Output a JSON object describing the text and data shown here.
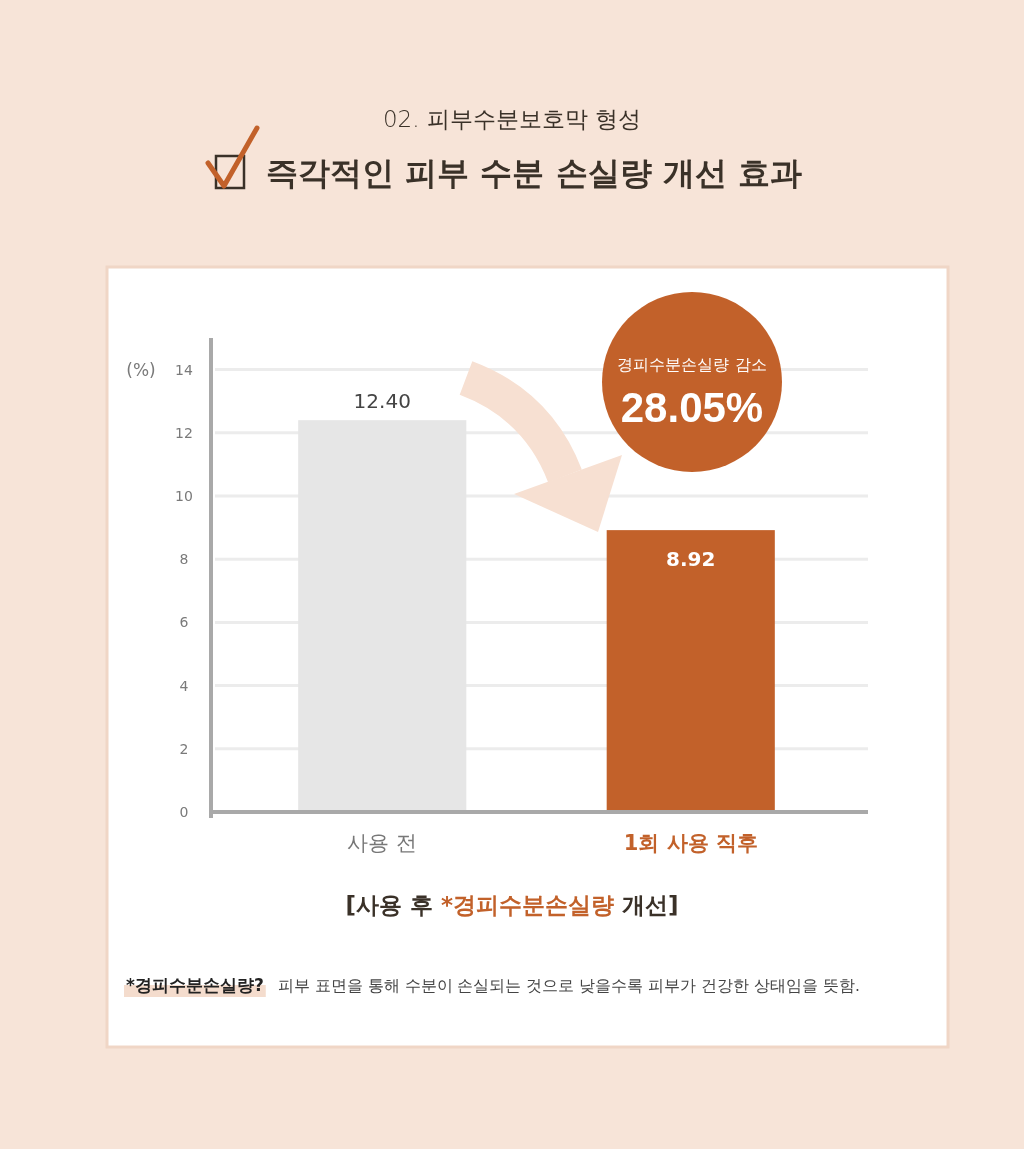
{
  "chart_data": {
    "type": "bar",
    "subtitle": "02. 피부수분보호막 형성",
    "title": "즉각적인 피부 수분 손실량 개선 효과",
    "ylabel": "(%)",
    "xlabel": "[사용 후 *경피수분손실량 개선]",
    "categories": [
      "사용 전",
      "1회 사용 직후"
    ],
    "values": [
      12.4,
      8.92
    ],
    "value_labels": [
      "12.40",
      "8.92"
    ],
    "colors": [
      "#e6e6e6",
      "#c2612a"
    ],
    "ylim": [
      0,
      15
    ],
    "yticks": [
      0,
      2,
      4,
      6,
      8,
      10,
      12,
      14
    ],
    "grid": "y",
    "annotations": [
      "경피수분손실량 감소",
      "28.05%",
      "*경피수분손실량?",
      "피부 표면을 통해 수분이 손실되는 것으로 낮을수록 피부가 건강한 상태임을 뜻함."
    ]
  }
}
